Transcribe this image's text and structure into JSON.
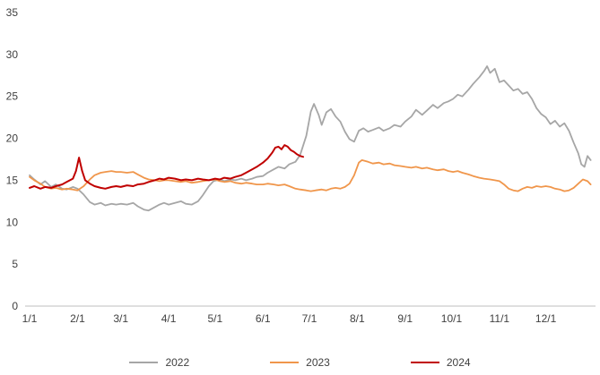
{
  "chart_data": {
    "type": "line",
    "title": "",
    "xlabel": "",
    "ylabel": "",
    "ylim": [
      0,
      35
    ],
    "x_range": [
      1,
      366
    ],
    "grid": false,
    "legend_position": "bottom",
    "axis_color": "#BFBFBF",
    "y_ticks": [
      0,
      5,
      10,
      15,
      20,
      25,
      30,
      35
    ],
    "x_ticks": [
      {
        "day": 1,
        "label": "1/1"
      },
      {
        "day": 32,
        "label": "2/1"
      },
      {
        "day": 60,
        "label": "3/1"
      },
      {
        "day": 91,
        "label": "4/1"
      },
      {
        "day": 121,
        "label": "5/1"
      },
      {
        "day": 152,
        "label": "6/1"
      },
      {
        "day": 182,
        "label": "7/1"
      },
      {
        "day": 213,
        "label": "8/1"
      },
      {
        "day": 244,
        "label": "9/1"
      },
      {
        "day": 274,
        "label": "10/1"
      },
      {
        "day": 305,
        "label": "11/1"
      },
      {
        "day": 335,
        "label": "12/1"
      }
    ],
    "series": [
      {
        "name": "2022",
        "color": "#A6A6A6",
        "width": 1.8,
        "points": [
          [
            1,
            15.6
          ],
          [
            4,
            15.1
          ],
          [
            8,
            14.5
          ],
          [
            11,
            14.9
          ],
          [
            15,
            14.2
          ],
          [
            18,
            14.5
          ],
          [
            22,
            14.0
          ],
          [
            25,
            13.9
          ],
          [
            29,
            14.2
          ],
          [
            32,
            14.0
          ],
          [
            36,
            13.3
          ],
          [
            40,
            12.4
          ],
          [
            43,
            12.1
          ],
          [
            47,
            12.3
          ],
          [
            50,
            12.0
          ],
          [
            54,
            12.2
          ],
          [
            57,
            12.1
          ],
          [
            60,
            12.2
          ],
          [
            64,
            12.1
          ],
          [
            68,
            12.3
          ],
          [
            71,
            11.9
          ],
          [
            75,
            11.5
          ],
          [
            78,
            11.4
          ],
          [
            82,
            11.8
          ],
          [
            85,
            12.1
          ],
          [
            88,
            12.3
          ],
          [
            91,
            12.1
          ],
          [
            95,
            12.3
          ],
          [
            99,
            12.5
          ],
          [
            102,
            12.2
          ],
          [
            106,
            12.1
          ],
          [
            110,
            12.5
          ],
          [
            113,
            13.2
          ],
          [
            117,
            14.3
          ],
          [
            120,
            14.9
          ],
          [
            124,
            15.1
          ],
          [
            127,
            14.9
          ],
          [
            131,
            15.1
          ],
          [
            134,
            15.0
          ],
          [
            138,
            15.2
          ],
          [
            141,
            15.0
          ],
          [
            145,
            15.2
          ],
          [
            148,
            15.4
          ],
          [
            152,
            15.5
          ],
          [
            155,
            15.9
          ],
          [
            159,
            16.3
          ],
          [
            162,
            16.6
          ],
          [
            166,
            16.4
          ],
          [
            169,
            16.9
          ],
          [
            173,
            17.2
          ],
          [
            176,
            18.0
          ],
          [
            180,
            20.3
          ],
          [
            183,
            23.2
          ],
          [
            185,
            24.1
          ],
          [
            188,
            22.8
          ],
          [
            190,
            21.6
          ],
          [
            193,
            23.1
          ],
          [
            196,
            23.5
          ],
          [
            199,
            22.6
          ],
          [
            202,
            22.0
          ],
          [
            205,
            20.8
          ],
          [
            208,
            19.9
          ],
          [
            211,
            19.6
          ],
          [
            214,
            20.9
          ],
          [
            217,
            21.2
          ],
          [
            220,
            20.8
          ],
          [
            223,
            21.0
          ],
          [
            227,
            21.3
          ],
          [
            230,
            20.9
          ],
          [
            234,
            21.2
          ],
          [
            237,
            21.6
          ],
          [
            241,
            21.4
          ],
          [
            244,
            22.0
          ],
          [
            248,
            22.6
          ],
          [
            251,
            23.4
          ],
          [
            255,
            22.8
          ],
          [
            258,
            23.3
          ],
          [
            262,
            24.0
          ],
          [
            265,
            23.6
          ],
          [
            269,
            24.2
          ],
          [
            272,
            24.4
          ],
          [
            275,
            24.7
          ],
          [
            278,
            25.2
          ],
          [
            281,
            25.0
          ],
          [
            285,
            25.8
          ],
          [
            288,
            26.5
          ],
          [
            292,
            27.3
          ],
          [
            295,
            28.0
          ],
          [
            297,
            28.6
          ],
          [
            299,
            27.8
          ],
          [
            302,
            28.3
          ],
          [
            305,
            26.7
          ],
          [
            308,
            26.9
          ],
          [
            311,
            26.3
          ],
          [
            314,
            25.7
          ],
          [
            317,
            25.9
          ],
          [
            320,
            25.3
          ],
          [
            323,
            25.5
          ],
          [
            326,
            24.7
          ],
          [
            329,
            23.6
          ],
          [
            332,
            22.9
          ],
          [
            335,
            22.5
          ],
          [
            338,
            21.7
          ],
          [
            341,
            22.1
          ],
          [
            344,
            21.4
          ],
          [
            347,
            21.8
          ],
          [
            350,
            20.9
          ],
          [
            353,
            19.5
          ],
          [
            356,
            18.2
          ],
          [
            358,
            16.9
          ],
          [
            360,
            16.6
          ],
          [
            362,
            17.9
          ],
          [
            364,
            17.4
          ]
        ]
      },
      {
        "name": "2023",
        "color": "#F0964B",
        "width": 1.8,
        "points": [
          [
            1,
            15.4
          ],
          [
            4,
            15.0
          ],
          [
            8,
            14.6
          ],
          [
            11,
            14.2
          ],
          [
            15,
            14.0
          ],
          [
            18,
            14.1
          ],
          [
            22,
            13.9
          ],
          [
            25,
            14.0
          ],
          [
            29,
            13.9
          ],
          [
            32,
            13.8
          ],
          [
            36,
            14.3
          ],
          [
            40,
            15.1
          ],
          [
            43,
            15.6
          ],
          [
            47,
            15.9
          ],
          [
            50,
            16.0
          ],
          [
            54,
            16.1
          ],
          [
            57,
            16.0
          ],
          [
            60,
            16.0
          ],
          [
            64,
            15.9
          ],
          [
            68,
            16.0
          ],
          [
            71,
            15.7
          ],
          [
            75,
            15.3
          ],
          [
            78,
            15.1
          ],
          [
            82,
            15.0
          ],
          [
            85,
            14.9
          ],
          [
            88,
            15.0
          ],
          [
            91,
            15.0
          ],
          [
            95,
            14.9
          ],
          [
            99,
            14.8
          ],
          [
            102,
            14.9
          ],
          [
            106,
            14.7
          ],
          [
            110,
            14.8
          ],
          [
            113,
            14.9
          ],
          [
            117,
            15.0
          ],
          [
            121,
            15.1
          ],
          [
            124,
            14.9
          ],
          [
            127,
            14.8
          ],
          [
            131,
            14.9
          ],
          [
            134,
            14.7
          ],
          [
            138,
            14.6
          ],
          [
            141,
            14.7
          ],
          [
            145,
            14.6
          ],
          [
            148,
            14.5
          ],
          [
            152,
            14.5
          ],
          [
            155,
            14.6
          ],
          [
            159,
            14.5
          ],
          [
            162,
            14.4
          ],
          [
            166,
            14.5
          ],
          [
            169,
            14.3
          ],
          [
            173,
            14.0
          ],
          [
            176,
            13.9
          ],
          [
            180,
            13.8
          ],
          [
            183,
            13.7
          ],
          [
            186,
            13.8
          ],
          [
            190,
            13.9
          ],
          [
            193,
            13.8
          ],
          [
            196,
            14.0
          ],
          [
            199,
            14.1
          ],
          [
            202,
            14.0
          ],
          [
            205,
            14.2
          ],
          [
            208,
            14.6
          ],
          [
            211,
            15.6
          ],
          [
            214,
            17.1
          ],
          [
            216,
            17.4
          ],
          [
            220,
            17.2
          ],
          [
            223,
            17.0
          ],
          [
            227,
            17.1
          ],
          [
            230,
            16.9
          ],
          [
            234,
            17.0
          ],
          [
            237,
            16.8
          ],
          [
            241,
            16.7
          ],
          [
            244,
            16.6
          ],
          [
            248,
            16.5
          ],
          [
            251,
            16.6
          ],
          [
            255,
            16.4
          ],
          [
            258,
            16.5
          ],
          [
            262,
            16.3
          ],
          [
            265,
            16.2
          ],
          [
            269,
            16.3
          ],
          [
            272,
            16.1
          ],
          [
            275,
            16.0
          ],
          [
            278,
            16.1
          ],
          [
            281,
            15.9
          ],
          [
            285,
            15.7
          ],
          [
            288,
            15.5
          ],
          [
            292,
            15.3
          ],
          [
            295,
            15.2
          ],
          [
            299,
            15.1
          ],
          [
            302,
            15.0
          ],
          [
            305,
            14.9
          ],
          [
            308,
            14.5
          ],
          [
            311,
            14.0
          ],
          [
            314,
            13.8
          ],
          [
            317,
            13.7
          ],
          [
            320,
            14.0
          ],
          [
            323,
            14.2
          ],
          [
            326,
            14.1
          ],
          [
            329,
            14.3
          ],
          [
            332,
            14.2
          ],
          [
            335,
            14.3
          ],
          [
            338,
            14.2
          ],
          [
            341,
            14.0
          ],
          [
            344,
            13.9
          ],
          [
            347,
            13.7
          ],
          [
            350,
            13.8
          ],
          [
            353,
            14.1
          ],
          [
            356,
            14.6
          ],
          [
            359,
            15.1
          ],
          [
            362,
            14.9
          ],
          [
            364,
            14.5
          ]
        ]
      },
      {
        "name": "2024",
        "color": "#C00000",
        "width": 2,
        "points": [
          [
            1,
            14.1
          ],
          [
            4,
            14.3
          ],
          [
            8,
            14.0
          ],
          [
            11,
            14.2
          ],
          [
            15,
            14.1
          ],
          [
            18,
            14.3
          ],
          [
            22,
            14.5
          ],
          [
            25,
            14.8
          ],
          [
            29,
            15.2
          ],
          [
            31,
            16.1
          ],
          [
            33,
            17.7
          ],
          [
            35,
            16.1
          ],
          [
            37,
            15.0
          ],
          [
            40,
            14.6
          ],
          [
            43,
            14.3
          ],
          [
            47,
            14.1
          ],
          [
            50,
            14.0
          ],
          [
            54,
            14.2
          ],
          [
            57,
            14.3
          ],
          [
            60,
            14.2
          ],
          [
            64,
            14.4
          ],
          [
            68,
            14.3
          ],
          [
            71,
            14.5
          ],
          [
            75,
            14.6
          ],
          [
            78,
            14.8
          ],
          [
            82,
            15.0
          ],
          [
            85,
            15.2
          ],
          [
            88,
            15.1
          ],
          [
            91,
            15.3
          ],
          [
            95,
            15.2
          ],
          [
            99,
            15.0
          ],
          [
            102,
            15.1
          ],
          [
            106,
            15.0
          ],
          [
            110,
            15.2
          ],
          [
            113,
            15.1
          ],
          [
            117,
            15.0
          ],
          [
            121,
            15.2
          ],
          [
            124,
            15.1
          ],
          [
            127,
            15.3
          ],
          [
            131,
            15.2
          ],
          [
            134,
            15.4
          ],
          [
            138,
            15.6
          ],
          [
            141,
            15.9
          ],
          [
            145,
            16.3
          ],
          [
            148,
            16.6
          ],
          [
            152,
            17.1
          ],
          [
            155,
            17.6
          ],
          [
            158,
            18.3
          ],
          [
            160,
            18.9
          ],
          [
            162,
            19.0
          ],
          [
            164,
            18.7
          ],
          [
            166,
            19.2
          ],
          [
            168,
            19.0
          ],
          [
            170,
            18.6
          ],
          [
            172,
            18.4
          ],
          [
            174,
            18.1
          ],
          [
            176,
            17.9
          ],
          [
            178,
            17.8
          ]
        ]
      }
    ]
  }
}
